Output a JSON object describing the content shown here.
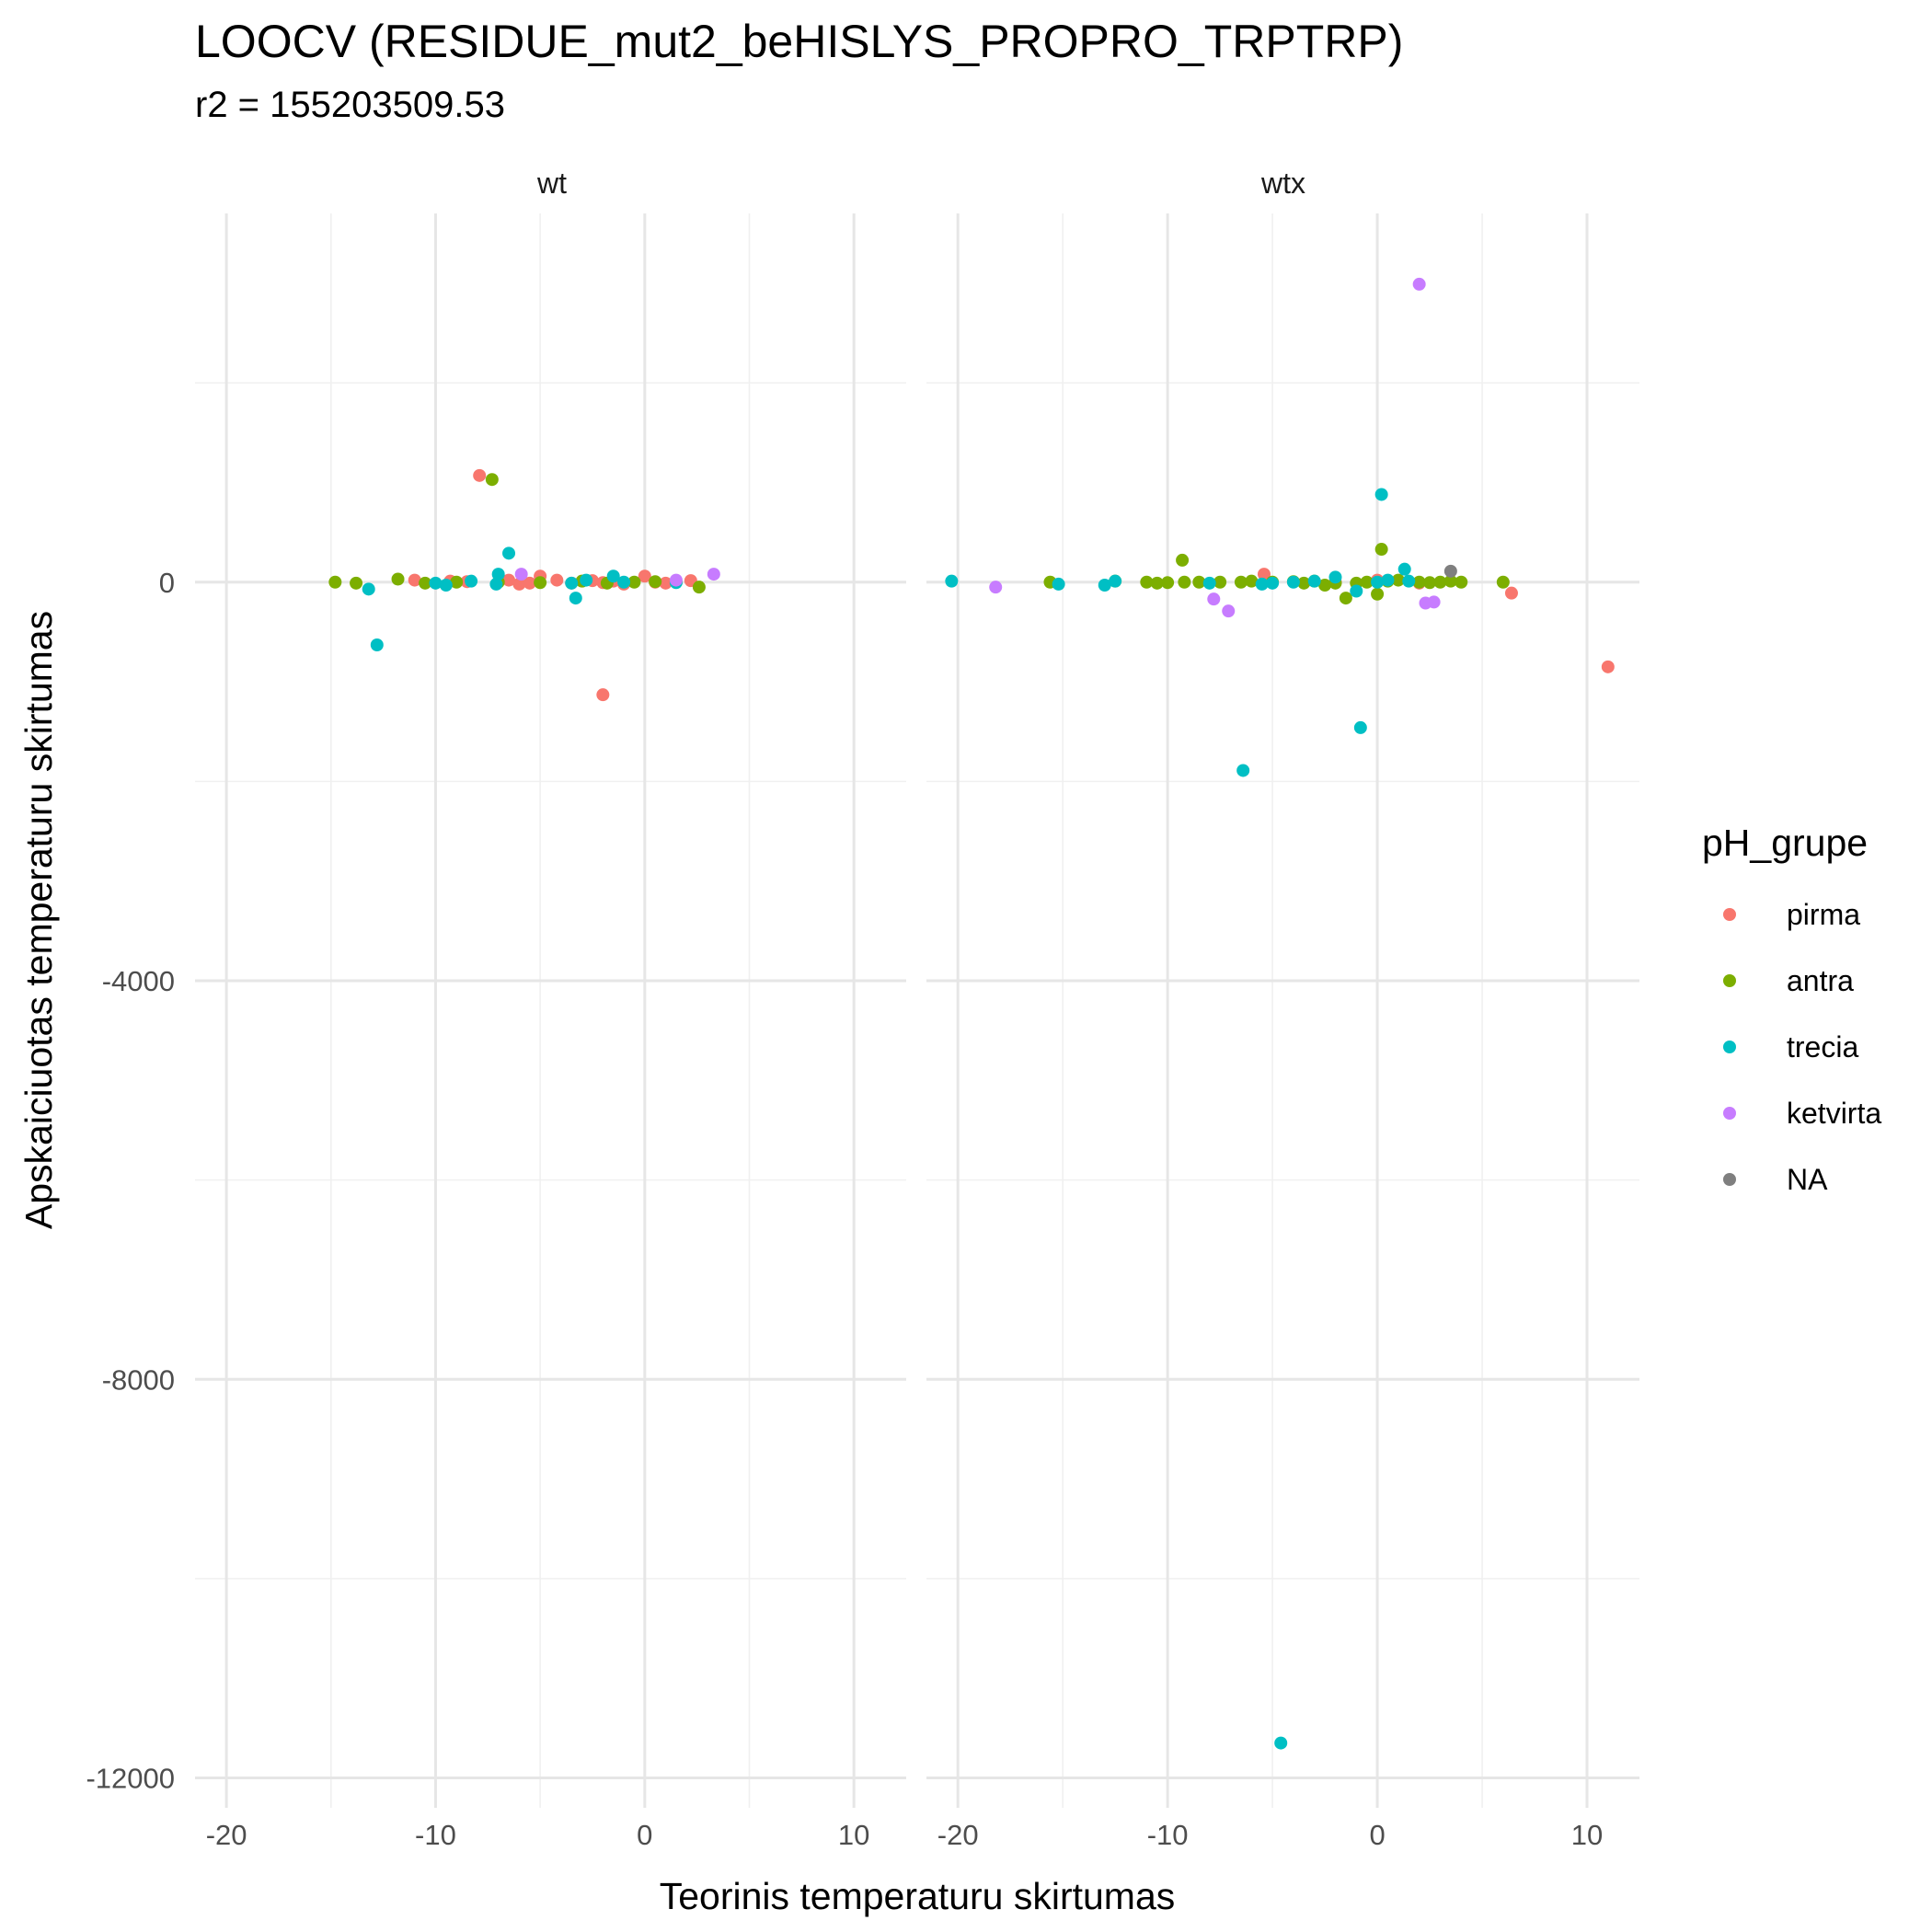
{
  "chart_data": {
    "type": "scatter",
    "title": "LOOCV (RESIDUE_mut2_beHISLYS_PROPRO_TRPTRP)",
    "subtitle": "r2 = 155203509.53",
    "xlabel": "Teorinis temperaturu skirtumas",
    "ylabel": "Apskaiciuotas temperaturu skirtumas",
    "xlim": [
      -21.5,
      12.5
    ],
    "ylim": [
      -12300,
      3700
    ],
    "x_ticks": [
      -20,
      -10,
      0,
      10
    ],
    "y_ticks": [
      -12000,
      -8000,
      -4000,
      0
    ],
    "x_tick_labels": [
      "-20",
      "-10",
      "0",
      "10"
    ],
    "y_tick_labels": [
      "-12000",
      "-8000",
      "-4000",
      "0"
    ],
    "grid": true,
    "legend": {
      "title": "pH_grupe",
      "position": "right",
      "entries": [
        {
          "label": "pirma",
          "color": "#F8766D"
        },
        {
          "label": "antra",
          "color": "#7CAE00"
        },
        {
          "label": "trecia",
          "color": "#00BFC4"
        },
        {
          "label": "ketvirta",
          "color": "#C77CFF"
        },
        {
          "label": "NA",
          "color": "#7F7F7F"
        }
      ]
    },
    "facets": [
      {
        "label": "wt",
        "series": [
          {
            "name": "pirma",
            "points": [
              [
                -7.9,
                1070
              ],
              [
                -2,
                -1130
              ],
              [
                -11,
                20
              ],
              [
                -9.3,
                10
              ],
              [
                -8.5,
                5
              ],
              [
                -6.5,
                20
              ],
              [
                -6,
                -20
              ],
              [
                -5.5,
                -10
              ],
              [
                -5,
                60
              ],
              [
                -4.2,
                20
              ],
              [
                -3.5,
                -10
              ],
              [
                -2.5,
                15
              ],
              [
                -2,
                -5
              ],
              [
                -1.5,
                10
              ],
              [
                -1,
                -20
              ],
              [
                0,
                60
              ],
              [
                0.5,
                0
              ],
              [
                1,
                -10
              ],
              [
                2.2,
                15
              ]
            ]
          },
          {
            "name": "antra",
            "points": [
              [
                -7.3,
                1030
              ],
              [
                -14.8,
                0
              ],
              [
                -13.8,
                -10
              ],
              [
                -11.8,
                30
              ],
              [
                -10.5,
                -10
              ],
              [
                -9,
                0
              ],
              [
                -7,
                0
              ],
              [
                -5,
                -5
              ],
              [
                -3,
                10
              ],
              [
                -1.8,
                -10
              ],
              [
                -0.5,
                0
              ],
              [
                0.5,
                5
              ],
              [
                1.5,
                0
              ],
              [
                2.6,
                -50
              ]
            ]
          },
          {
            "name": "trecia",
            "points": [
              [
                -12.8,
                -630
              ],
              [
                -13.2,
                -70
              ],
              [
                -6.5,
                290
              ],
              [
                -7,
                80
              ],
              [
                -7.1,
                -20
              ],
              [
                -8.3,
                10
              ],
              [
                -9.5,
                -30
              ],
              [
                -10,
                -10
              ],
              [
                -3.5,
                -10
              ],
              [
                -3.3,
                -160
              ],
              [
                -2.8,
                20
              ],
              [
                -1.5,
                60
              ],
              [
                -1,
                0
              ],
              [
                1.5,
                -5
              ]
            ]
          },
          {
            "name": "ketvirta",
            "points": [
              [
                -5.9,
                80
              ],
              [
                1.5,
                20
              ],
              [
                3.3,
                80
              ]
            ]
          }
        ]
      },
      {
        "label": "wtx",
        "series": [
          {
            "name": "pirma",
            "points": [
              [
                11,
                -850
              ],
              [
                6.4,
                -110
              ],
              [
                -5.4,
                80
              ],
              [
                -2,
                0
              ],
              [
                0,
                20
              ],
              [
                2,
                -10
              ]
            ]
          },
          {
            "name": "antra",
            "points": [
              [
                0.2,
                330
              ],
              [
                -9.3,
                220
              ],
              [
                -15.6,
                0
              ],
              [
                -12.5,
                10
              ],
              [
                -11,
                0
              ],
              [
                -10.5,
                -10
              ],
              [
                -10,
                -5
              ],
              [
                -9.2,
                0
              ],
              [
                -8.5,
                0
              ],
              [
                -7.5,
                0
              ],
              [
                -6.5,
                0
              ],
              [
                -6,
                10
              ],
              [
                -5,
                0
              ],
              [
                -4,
                5
              ],
              [
                -3.5,
                -10
              ],
              [
                -3,
                10
              ],
              [
                -2.5,
                -30
              ],
              [
                -2,
                -10
              ],
              [
                -1.5,
                -160
              ],
              [
                -1,
                -10
              ],
              [
                -0.5,
                0
              ],
              [
                0,
                -120
              ],
              [
                0.5,
                10
              ],
              [
                1,
                20
              ],
              [
                2,
                0
              ],
              [
                2.5,
                -5
              ],
              [
                3,
                0
              ],
              [
                3.5,
                10
              ],
              [
                4,
                0
              ],
              [
                6,
                0
              ]
            ]
          },
          {
            "name": "trecia",
            "points": [
              [
                -4.6,
                -11650
              ],
              [
                -6.4,
                -1890
              ],
              [
                -0.8,
                -1460
              ],
              [
                0.2,
                880
              ],
              [
                -20.3,
                10
              ],
              [
                -15.2,
                -20
              ],
              [
                -13,
                -30
              ],
              [
                -12.5,
                10
              ],
              [
                -8,
                -10
              ],
              [
                -5.5,
                -20
              ],
              [
                -5,
                -10
              ],
              [
                -4,
                0
              ],
              [
                -3,
                10
              ],
              [
                -2,
                50
              ],
              [
                -1,
                -90
              ],
              [
                0,
                0
              ],
              [
                0.5,
                20
              ],
              [
                1.3,
                130
              ],
              [
                1.5,
                10
              ]
            ]
          },
          {
            "name": "ketvirta",
            "points": [
              [
                2,
                2990
              ],
              [
                -18.2,
                -50
              ],
              [
                -7.8,
                -170
              ],
              [
                -7.1,
                -290
              ],
              [
                2.3,
                -210
              ],
              [
                2.7,
                -200
              ]
            ]
          },
          {
            "name": "NA",
            "points": [
              [
                3.5,
                110
              ]
            ]
          }
        ]
      }
    ]
  }
}
